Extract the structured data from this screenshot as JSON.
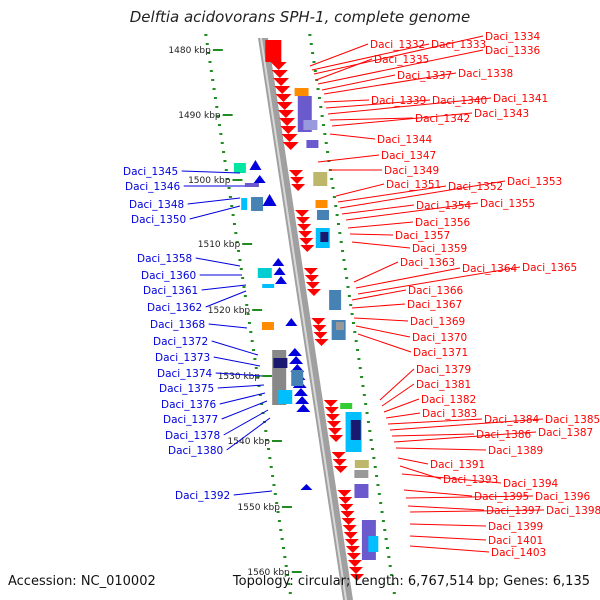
{
  "title": "Delftia acidovorans SPH-1, complete genome",
  "accession": "Accession: NC_010002",
  "topology": "Topology: circular; Length: 6,767,514 bp; Genes: 6,135",
  "ticks": [
    "1480 kbp",
    "1490 kbp",
    "1500 kbp",
    "1510 kbp",
    "1520 kbp",
    "1530 kbp",
    "1540 kbp",
    "1550 kbp",
    "1560 kbp"
  ],
  "left_genes": [
    "Daci_1345",
    "Daci_1346",
    "Daci_1348",
    "Daci_1350",
    "Daci_1358",
    "Daci_1360",
    "Daci_1361",
    "Daci_1362",
    "Daci_1368",
    "Daci_1372",
    "Daci_1373",
    "Daci_1374",
    "Daci_1375",
    "Daci_1376",
    "Daci_1377",
    "Daci_1378",
    "Daci_1380",
    "Daci_1392"
  ],
  "right_genes": [
    "Daci_1332",
    "Daci_1333",
    "Daci_1334",
    "Daci_1335",
    "Daci_1336",
    "Daci_1337",
    "Daci_1338",
    "Daci_1339",
    "Daci_1340",
    "Daci_1341",
    "Daci_1342",
    "Daci_1343",
    "Daci_1344",
    "Daci_1347",
    "Daci_1349",
    "Daci_1351",
    "Daci_1352",
    "Daci_1353",
    "Daci_1354",
    "Daci_1355",
    "Daci_1356",
    "Daci_1357",
    "Daci_1359",
    "Daci_1363",
    "Daci_1364",
    "Daci_1365",
    "Daci_1366",
    "Daci_1367",
    "Daci_1369",
    "Daci_1370",
    "Daci_1371",
    "Daci_1379",
    "Daci_1381",
    "Daci_1382",
    "Daci_1383",
    "Daci_1384",
    "Daci_1385",
    "Daci_1386",
    "Daci_1387",
    "Daci_1389",
    "Daci_1391",
    "Daci_1393",
    "Daci_1394",
    "Daci_1395",
    "Daci_1396",
    "Daci_1397",
    "Daci_1398",
    "Daci_1399",
    "Daci_1401",
    "Daci_1403"
  ],
  "colors": {
    "forward": "#ff0000",
    "reverse": "#0000dd",
    "tick": "#228b22",
    "backbone": "#999999"
  }
}
